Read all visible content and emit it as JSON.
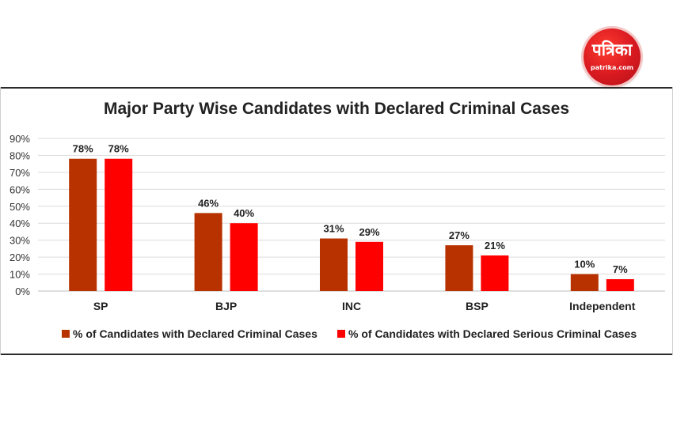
{
  "logo": {
    "main_text": "पत्रिका",
    "sub_text": "patrika.com"
  },
  "chart_data": {
    "type": "bar",
    "title": "Major Party Wise Candidates with Declared Criminal Cases",
    "categories": [
      "SP",
      "BJP",
      "INC",
      "BSP",
      "Independent"
    ],
    "series": [
      {
        "name": "% of Candidates with Declared Criminal Cases",
        "values": [
          78,
          46,
          31,
          27,
          10
        ],
        "labels": [
          "78%",
          "46%",
          "31%",
          "27%",
          "10%"
        ],
        "color": "#b83200"
      },
      {
        "name": "% of Candidates with Declared Serious Criminal Cases",
        "values": [
          78,
          40,
          29,
          21,
          7
        ],
        "labels": [
          "78%",
          "40%",
          "29%",
          "21%",
          "7%"
        ],
        "color": "#ff0000"
      }
    ],
    "ylim": [
      0,
      90
    ],
    "yticks": [
      "0%",
      "10%",
      "20%",
      "30%",
      "40%",
      "50%",
      "60%",
      "70%",
      "80%",
      "90%"
    ],
    "grid": true,
    "legend": "bottom"
  }
}
